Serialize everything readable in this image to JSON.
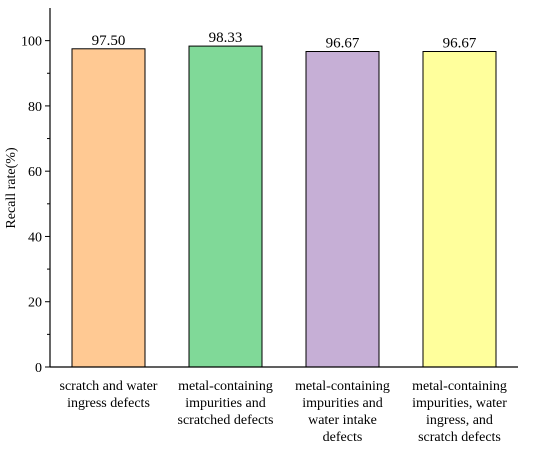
{
  "chart_data": {
    "type": "bar",
    "title": "",
    "xlabel": "",
    "ylabel": "Recall rate(%)",
    "ylim": [
      0,
      110
    ],
    "yticks": [
      0,
      20,
      40,
      60,
      80,
      100
    ],
    "grid": false,
    "legend": "none",
    "categories": [
      [
        "scratch and water",
        "ingress defects"
      ],
      [
        "metal-containing",
        "impurities and",
        "scratched defects"
      ],
      [
        "metal-containing",
        "impurities and",
        "water intake",
        "defects"
      ],
      [
        "metal-containing",
        "impurities, water",
        "ingress, and",
        "scratch defects"
      ]
    ],
    "values": [
      97.5,
      98.33,
      96.67,
      96.67
    ],
    "value_labels": [
      "97.50",
      "98.33",
      "96.67",
      "96.67"
    ],
    "colors": [
      "#FFC993",
      "#80D998",
      "#C6AFD6",
      "#FFFF9C"
    ]
  }
}
